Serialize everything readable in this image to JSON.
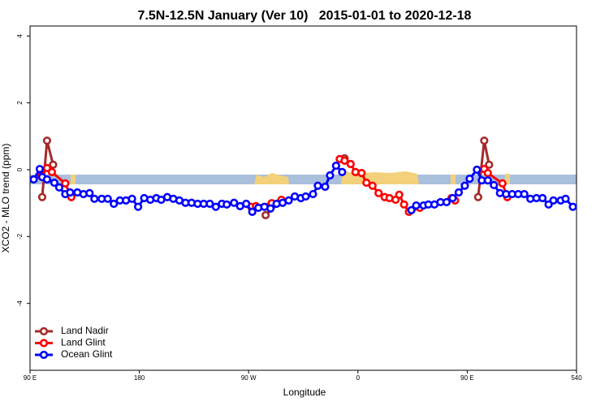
{
  "chart_data": {
    "type": "line",
    "title": "7.5N-12.5N January (Ver 10)   2015-01-01 to 2020-12-18",
    "xlabel": "Longitude",
    "ylabel": "XCO2 - MLO trend (ppm)",
    "xlim": [
      90,
      540
    ],
    "ylim": [
      -6,
      4.3
    ],
    "xticks": [
      {
        "value": 90,
        "label": "90 E"
      },
      180,
      {
        "value": 270,
        "label": "90 W"
      },
      {
        "value": 360,
        "label": "0"
      },
      {
        "value": 450,
        "label": "90 E"
      },
      540
    ],
    "yticks": [
      -4,
      -2,
      0,
      2,
      4
    ],
    "legend": "bottom-left",
    "series": [
      {
        "name": "Land Nadir",
        "color": "#a52a2a",
        "x": [
          100,
          104,
          109,
          null,
          284,
          296,
          null,
          349,
          null,
          459,
          464,
          468
        ],
        "values": [
          -0.82,
          0.87,
          0.15,
          null,
          -1.36,
          -0.97,
          null,
          0.34,
          null,
          -0.82,
          0.87,
          0.15
        ]
      },
      {
        "name": "Land Glint",
        "color": "#ff0000",
        "x": [
          99,
          104,
          108,
          119,
          124,
          null,
          272,
          276,
          289,
          297,
          null,
          345,
          349,
          354,
          358,
          363,
          367,
          372,
          377,
          382,
          386,
          391,
          394,
          398,
          402,
          411,
          null,
          437,
          440,
          null,
          464,
          467,
          479,
          483
        ],
        "values": [
          -0.19,
          0.05,
          -0.07,
          -0.41,
          -0.82,
          null,
          -1.11,
          -1.09,
          -1.0,
          -0.9,
          null,
          0.32,
          0.27,
          0.17,
          -0.07,
          -0.1,
          -0.39,
          -0.48,
          -0.7,
          -0.82,
          -0.85,
          -0.9,
          -0.75,
          -1.04,
          -1.26,
          -1.14,
          null,
          -0.85,
          -0.92,
          null,
          0.02,
          -0.1,
          -0.41,
          -0.82
        ]
      },
      {
        "name": "Ocean Glint",
        "color": "#0000ff",
        "x": [
          93,
          98,
          100,
          104,
          110,
          114,
          119,
          123,
          129,
          134,
          139,
          143,
          149,
          154,
          159,
          164,
          169,
          174,
          179,
          184,
          189,
          194,
          198,
          203,
          208,
          213,
          218,
          223,
          228,
          233,
          238,
          243,
          248,
          252,
          258,
          263,
          268,
          273,
          278,
          283,
          288,
          293,
          298,
          303,
          308,
          313,
          317,
          323,
          327,
          333,
          337,
          342,
          347,
          null,
          404,
          408,
          414,
          418,
          423,
          428,
          433,
          438,
          443,
          448,
          452,
          458,
          462,
          467,
          472,
          477,
          482,
          487,
          492,
          497,
          502,
          507,
          512,
          517,
          521,
          527,
          531,
          537
        ],
        "values": [
          -0.29,
          0.02,
          -0.22,
          -0.29,
          -0.39,
          -0.53,
          -0.73,
          -0.68,
          -0.68,
          -0.73,
          -0.7,
          -0.87,
          -0.87,
          -0.87,
          -1.02,
          -0.92,
          -0.92,
          -0.87,
          -1.11,
          -0.85,
          -0.9,
          -0.85,
          -0.9,
          -0.82,
          -0.87,
          -0.92,
          -0.99,
          -0.99,
          -1.02,
          -1.02,
          -1.02,
          -1.11,
          -1.02,
          -1.04,
          -0.99,
          -1.09,
          -1.02,
          -1.26,
          -1.14,
          -1.11,
          -1.16,
          -1.02,
          -0.99,
          -0.92,
          -0.8,
          -0.85,
          -0.8,
          -0.73,
          -0.48,
          -0.51,
          -0.17,
          0.12,
          -0.07,
          null,
          -1.21,
          -1.07,
          -1.07,
          -1.04,
          -1.04,
          -0.97,
          -0.97,
          -0.85,
          -0.68,
          -0.48,
          -0.27,
          0.0,
          -0.32,
          -0.32,
          -0.46,
          -0.7,
          -0.73,
          -0.73,
          -0.73,
          -0.73,
          -0.87,
          -0.85,
          -0.85,
          -1.04,
          -0.92,
          -0.92,
          -0.87,
          -1.11
        ]
      }
    ]
  }
}
